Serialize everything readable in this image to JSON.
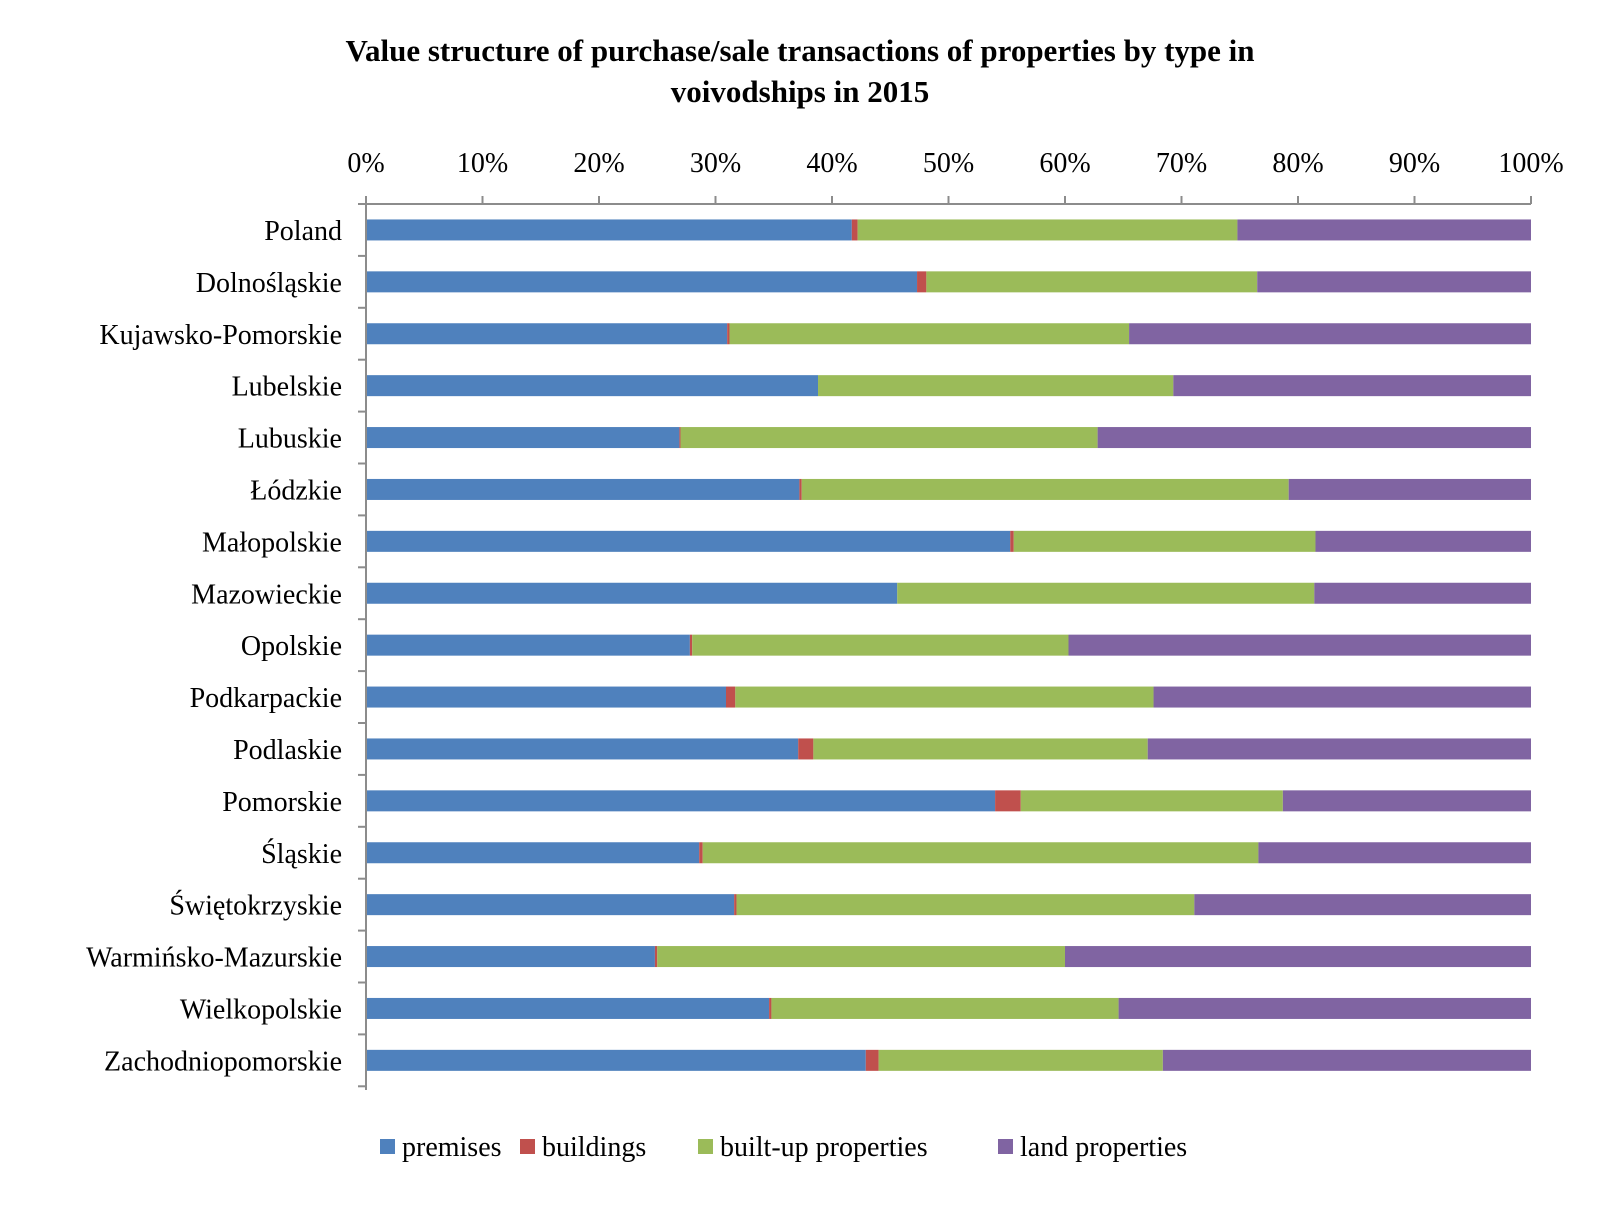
{
  "chart_data": {
    "type": "bar",
    "orientation": "horizontal",
    "stacked": "percent",
    "title_line1": "Value structure of purchase/sale transactions of properties by type in",
    "title_line2": "voivodships in 2015",
    "xlim": [
      0,
      100
    ],
    "x_ticks": [
      "0%",
      "10%",
      "20%",
      "30%",
      "40%",
      "50%",
      "60%",
      "70%",
      "80%",
      "90%",
      "100%"
    ],
    "x_axis_position": "top",
    "legend_position": "bottom",
    "grid": false,
    "categories": [
      "Poland",
      "Dolnośląskie",
      "Kujawsko-Pomorskie",
      "Lubelskie",
      "Lubuskie",
      "Łódzkie",
      "Małopolskie",
      "Mazowieckie",
      "Opolskie",
      "Podkarpackie",
      "Podlaskie",
      "Pomorskie",
      "Śląskie",
      "Świętokrzyskie",
      "Warmińsko-Mazurskie",
      "Wielkopolskie",
      "Zachodniopomorskie"
    ],
    "series": [
      {
        "name": "premises",
        "color": "#4F81BD",
        "values": [
          41.7,
          47.3,
          31.0,
          38.8,
          26.9,
          37.2,
          55.3,
          45.6,
          27.8,
          30.9,
          37.1,
          54.0,
          28.6,
          31.6,
          24.8,
          34.6,
          42.9
        ]
      },
      {
        "name": "buildings",
        "color": "#C0504D",
        "values": [
          0.5,
          0.8,
          0.2,
          0.0,
          0.1,
          0.2,
          0.3,
          0.0,
          0.2,
          0.8,
          1.3,
          2.2,
          0.3,
          0.2,
          0.2,
          0.2,
          1.1
        ]
      },
      {
        "name": "built-up properties",
        "color": "#9BBB59",
        "values": [
          32.6,
          28.4,
          34.3,
          30.5,
          35.8,
          41.8,
          25.9,
          35.8,
          32.3,
          35.9,
          28.7,
          22.5,
          47.7,
          39.3,
          35.0,
          29.8,
          24.4
        ]
      },
      {
        "name": "land properties",
        "color": "#8064A2",
        "values": [
          25.2,
          23.5,
          34.5,
          30.7,
          37.2,
          20.8,
          18.5,
          18.6,
          39.7,
          32.4,
          32.9,
          21.3,
          23.4,
          28.9,
          40.0,
          35.4,
          31.6
        ]
      }
    ]
  }
}
